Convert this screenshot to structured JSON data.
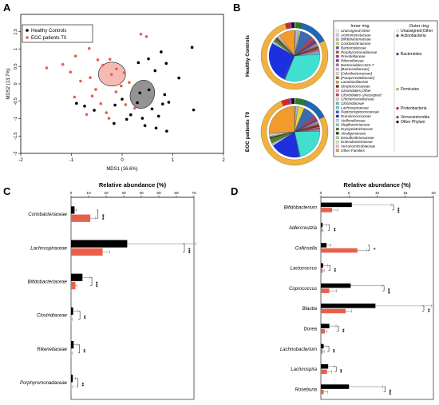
{
  "panels": [
    "A",
    "B",
    "C",
    "D"
  ],
  "chart_data": [
    {
      "panel": "A",
      "type": "scatter",
      "xlabel": "MDS1 (16.6%)",
      "ylabel": "MDS2 (13.7%)",
      "xlim": [
        -2,
        2
      ],
      "ylim": [
        -2,
        2
      ],
      "x_ticks": [
        -2,
        -1,
        0,
        1,
        2
      ],
      "y_ticks": [
        "-2",
        "-1.5",
        "-1",
        "-0.5",
        "0",
        "0.5",
        "1",
        "1.5"
      ],
      "legend_position": "top-left",
      "series": [
        {
          "name": "Healthy Controls",
          "color": "#000000",
          "points": [
            [
              1.38,
              1.05
            ],
            [
              0.77,
              0.92
            ],
            [
              0.87,
              0.59
            ],
            [
              0.52,
              0.72
            ],
            [
              0.32,
              0.61
            ],
            [
              0.65,
              0.38
            ],
            [
              1.12,
              0.17
            ],
            [
              0.84,
              -0.31
            ],
            [
              0.92,
              -0.53
            ],
            [
              0.59,
              -0.72
            ],
            [
              0.72,
              -0.93
            ],
            [
              0.67,
              -1.27
            ],
            [
              0.88,
              -1.36
            ],
            [
              0.4,
              -0.99
            ],
            [
              0.17,
              -0.89
            ],
            [
              -0.14,
              -0.61
            ],
            [
              0.0,
              -0.44
            ],
            [
              0.3,
              -0.54
            ],
            [
              -0.9,
              -0.56
            ],
            [
              -0.74,
              -0.64
            ],
            [
              -0.55,
              -0.76
            ],
            [
              0.35,
              -0.26
            ],
            [
              0.53,
              -0.17
            ],
            [
              1.41,
              -0.75
            ],
            [
              0.8,
              -0.58
            ],
            [
              -0.16,
              -1.14
            ],
            [
              0.09,
              -1.02
            ],
            [
              0.45,
              -1.2
            ]
          ]
        },
        {
          "name": "EOC patients T0",
          "color": "#e8604c",
          "points": [
            [
              -0.8,
              1.36
            ],
            [
              -0.65,
              1.02
            ],
            [
              -0.48,
              0.69
            ],
            [
              -0.92,
              0.8
            ],
            [
              -1.17,
              0.56
            ],
            [
              -1.02,
              0.34
            ],
            [
              -0.82,
              0.08
            ],
            [
              -0.63,
              0.18
            ],
            [
              -0.11,
              0.43
            ],
            [
              0.04,
              0.32
            ],
            [
              -0.21,
              0.27
            ],
            [
              -0.38,
              0.54
            ],
            [
              0.37,
              1.43
            ],
            [
              0.48,
              1.36
            ],
            [
              -0.24,
              0.71
            ],
            [
              0.14,
              0.04
            ],
            [
              -0.12,
              -0.23
            ],
            [
              -0.52,
              -0.16
            ],
            [
              -0.59,
              -0.35
            ],
            [
              -0.42,
              -0.57
            ],
            [
              -0.31,
              -0.83
            ],
            [
              -1.49,
              0.46
            ],
            [
              -0.94,
              -0.38
            ],
            [
              0.07,
              -0.6
            ],
            [
              0.25,
              -0.7
            ],
            [
              -0.02,
              -0.06
            ],
            [
              -0.26,
              -0.99
            ],
            [
              -0.7,
              -0.88
            ]
          ]
        }
      ]
    },
    {
      "panel": "B",
      "type": "pie",
      "rows": [
        "Healthy Controls",
        "EOC patients T0"
      ],
      "inner_ring_label": "Inner ring",
      "outer_ring_label": "Outer ring",
      "inner_ring": [
        {
          "name": "Unassigned;Other",
          "color": "#ffffff",
          "hc": 0.3,
          "eoc": 0.3
        },
        {
          "name": "Actinomycetaceae",
          "color": "#f4c7c3",
          "hc": 0.4,
          "eoc": 0.4
        },
        {
          "name": "Bifidobacteriaceae",
          "color": "#9bc1e8",
          "hc": 2.2,
          "eoc": 1.4
        },
        {
          "name": "Coriobacteriaceae",
          "color": "#e6d33c",
          "hc": 1.0,
          "eoc": 4.0
        },
        {
          "name": "Bacteroidaceae",
          "color": "#3d6ab0",
          "hc": 8.0,
          "eoc": 8.0
        },
        {
          "name": "Porphyromonadaceae",
          "color": "#d9422b",
          "hc": 1.7,
          "eoc": 1.2
        },
        {
          "name": "Prevotellaceae",
          "color": "#a23c8c",
          "hc": 1.0,
          "eoc": 1.0
        },
        {
          "name": "Rikenellaceae",
          "color": "#6e3f7f",
          "hc": 1.9,
          "eoc": 1.1
        },
        {
          "name": "Bacteroidales;S24-7",
          "color": "#b06fb4",
          "hc": 0.8,
          "eoc": 0.8
        },
        {
          "name": "[Barnesiellaceae]",
          "color": "#c9b4dd",
          "hc": 0.6,
          "eoc": 0.6
        },
        {
          "name": "[Odoribacteraceae]",
          "color": "#e7cfe8",
          "hc": 0.4,
          "eoc": 0.4
        },
        {
          "name": "[Paraprevotellaceae]",
          "color": "#8b6c2c",
          "hc": 0.4,
          "eoc": 0.4
        },
        {
          "name": "Lactobacillaceae",
          "color": "#d99b44",
          "hc": 0.4,
          "eoc": 0.5
        },
        {
          "name": "Streptococcaceae",
          "color": "#7a1f2a",
          "hc": 0.8,
          "eoc": 1.2
        },
        {
          "name": "Clostridiales;Other",
          "color": "#f3a29c",
          "hc": 0.5,
          "eoc": 0.5
        },
        {
          "name": "Clostridiales Unassigned",
          "color": "#c73d52",
          "hc": 1.0,
          "eoc": 1.0
        },
        {
          "name": "Christensenellaceae",
          "color": "#efc8c2",
          "hc": 0.5,
          "eoc": 0.5
        },
        {
          "name": "Clostridiaceae",
          "color": "#6fb0cc",
          "hc": 2.0,
          "eoc": 0.8
        },
        {
          "name": "Lachnospiraceae",
          "color": "#3fe0d0",
          "hc": 32.0,
          "eoc": 21.0
        },
        {
          "name": "Peptostreptococcaceae",
          "color": "#2b58c6",
          "hc": 1.0,
          "eoc": 1.0
        },
        {
          "name": "Ruminococcaceae",
          "color": "#1c30e0",
          "hc": 26.0,
          "eoc": 18.0
        },
        {
          "name": "Veillonellaceae",
          "color": "#c7d8ee",
          "hc": 1.0,
          "eoc": 1.0
        },
        {
          "name": "Mogibacteriaceae",
          "color": "#8ed0a8",
          "hc": 0.8,
          "eoc": 0.8
        },
        {
          "name": "Erysipelotrichaceae",
          "color": "#5b7a2a",
          "hc": 2.0,
          "eoc": 3.0
        },
        {
          "name": "Alcaligenaceae",
          "color": "#2e3d1a",
          "hc": 0.8,
          "eoc": 0.8
        },
        {
          "name": "Desulfovibrionaceae",
          "color": "#b7d28a",
          "hc": 0.6,
          "eoc": 0.6
        },
        {
          "name": "Enterobacteriaceae",
          "color": "#d4f0d8",
          "hc": 0.5,
          "eoc": 1.0
        },
        {
          "name": "Verrucomicrobiaceae",
          "color": "#f6b6d4",
          "hc": 1.0,
          "eoc": 1.0
        },
        {
          "name": "Other Families",
          "color": "#f39a2c",
          "hc": 10.0,
          "eoc": 25.0
        }
      ],
      "outer_ring": [
        {
          "name": "Unassigned;Other",
          "color": "#ffffff",
          "hc": 0.5,
          "eoc": 0.5
        },
        {
          "name": "Actinobacteria",
          "color": "#2a7a2a",
          "hc": 3.0,
          "eoc": 5.0
        },
        {
          "name": "Bacteroides",
          "color": "#1f66b4",
          "hc": 14.0,
          "eoc": 12.0
        },
        {
          "name": "Firmicutes",
          "color": "#f2b13c",
          "hc": 78.0,
          "eoc": 76.0
        },
        {
          "name": "Proteobacteria",
          "color": "#d92626",
          "hc": 2.0,
          "eoc": 3.5
        },
        {
          "name": "Verrucomicrobia",
          "color": "#b03a9c",
          "hc": 1.0,
          "eoc": 1.5
        },
        {
          "name": "Other Phylum",
          "color": "#111111",
          "hc": 1.5,
          "eoc": 1.5
        }
      ]
    },
    {
      "panel": "C",
      "type": "bar",
      "orientation": "horizontal",
      "title": "Relative abundance (%)",
      "xlim": [
        0,
        70
      ],
      "x_ticks": [
        0,
        10,
        20,
        30,
        40,
        50,
        60,
        70
      ],
      "categories": [
        "Coriobacteriaceae",
        "Lachnospiraceae",
        "Bifidobacteriaceae",
        "Clostridiaceae",
        "Rikenellaceae",
        "Porphyromonadaceae"
      ],
      "series": [
        {
          "color": "#000000",
          "values": [
            2.0,
            32.0,
            6.5,
            1.2,
            1.5,
            1.0
          ],
          "errors": [
            1.0,
            39.0,
            4.0,
            2.5,
            2.0,
            1.5
          ]
        },
        {
          "color": "#e8604c",
          "values": [
            11.0,
            18.0,
            2.5,
            0.2,
            0.2,
            0.2
          ],
          "errors": [
            3.0,
            4.0,
            0.8,
            0.5,
            0.5,
            0.8
          ]
        }
      ],
      "significance": [
        "***",
        "***",
        "***",
        "**",
        "**",
        "**"
      ]
    },
    {
      "panel": "D",
      "type": "bar",
      "orientation": "horizontal",
      "title": "Relative abundance (%)",
      "xlim": [
        0,
        20
      ],
      "x_ticks": [
        0,
        5,
        10,
        15,
        20
      ],
      "categories": [
        "Bifidobacterium",
        "Adlercreutzia",
        "Collinsella",
        "Lactococcus",
        "Coprococcus",
        "Blautia",
        "Dorea",
        "Lachnobacterium",
        "Lachnospira",
        "Roseburia"
      ],
      "series": [
        {
          "color": "#000000",
          "values": [
            5.5,
            0.3,
            1.0,
            0.4,
            5.3,
            9.7,
            1.5,
            0.5,
            1.3,
            5.0
          ],
          "errors": [
            7.0,
            0.8,
            0.8,
            0.8,
            5.5,
            10.0,
            1.2,
            0.5,
            1.0,
            6.0
          ]
        },
        {
          "color": "#e8604c",
          "values": [
            2.0,
            0.2,
            6.5,
            0.3,
            1.5,
            4.4,
            0.7,
            0.3,
            1.1,
            0.5
          ],
          "errors": [
            1.0,
            0.2,
            1.7,
            0.3,
            1.3,
            1.1,
            0.4,
            0.3,
            0.8,
            0.7
          ]
        }
      ],
      "significance": [
        "***",
        "**",
        "*",
        "**",
        "***",
        "**",
        "**",
        "**",
        "**",
        "***"
      ]
    }
  ]
}
